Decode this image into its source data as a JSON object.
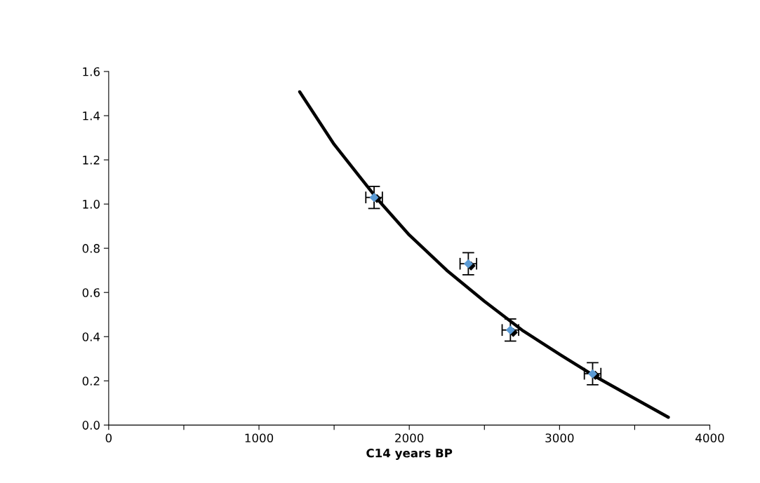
{
  "chart_data": {
    "type": "scatter",
    "xlabel": "C14 years BP",
    "xlim": [
      0,
      4000
    ],
    "xticks": [
      0,
      {
        "value": 500,
        "label": null
      },
      1000,
      {
        "value": 1500,
        "label": null
      },
      2000,
      {
        "value": 2500,
        "label": null
      },
      3000,
      {
        "value": 3500,
        "label": null
      },
      4000
    ],
    "ylim": [
      0,
      1.6
    ],
    "yticks": [
      {
        "value": 0,
        "label": "0.0"
      },
      {
        "value": 0.2,
        "label": "0.2"
      },
      {
        "value": 0.4,
        "label": "0.4"
      },
      {
        "value": 0.6,
        "label": "0.6"
      },
      {
        "value": 0.8,
        "label": "0.8"
      },
      {
        "value": 1.0,
        "label": "1.0"
      },
      {
        "value": 1.2,
        "label": "1.2"
      },
      {
        "value": 1.4,
        "label": "1.4"
      },
      {
        "value": 1.6,
        "label": "1.6"
      }
    ],
    "grid": false,
    "legend": false,
    "marker": "diamond",
    "series": [
      {
        "type": "line",
        "color": "#000000",
        "marker": "none",
        "line_style": "solid",
        "x": [
          1271,
          1500,
          1785,
          2000,
          2250,
          2500,
          2750,
          3000,
          3250,
          3500,
          3724
        ],
        "values": [
          1.508,
          1.27,
          1.025,
          0.86,
          0.7,
          0.56,
          0.43,
          0.32,
          0.215,
          0.12,
          0.035
        ]
      },
      {
        "color": "#000000",
        "x": [
          1785,
          2411,
          2692,
          3238
        ],
        "values": [
          1.025,
          0.72,
          0.419,
          0.225
        ]
      },
      {
        "color": "#5b9bd5",
        "x": [
          1766,
          2393,
          2673,
          3220
        ],
        "values": [
          1.03,
          0.73,
          0.43,
          0.232
        ],
        "errors": [
          0.05,
          0.05,
          0.05,
          0.05
        ],
        "xerrors": [
          55,
          55,
          55,
          55
        ]
      }
    ]
  }
}
